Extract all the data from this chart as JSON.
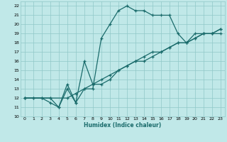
{
  "xlabel": "Humidex (Indice chaleur)",
  "xlim": [
    -0.5,
    23.5
  ],
  "ylim": [
    10,
    22.5
  ],
  "yticks": [
    10,
    11,
    12,
    13,
    14,
    15,
    16,
    17,
    18,
    19,
    20,
    21,
    22
  ],
  "xticks": [
    0,
    1,
    2,
    3,
    4,
    5,
    6,
    7,
    8,
    9,
    10,
    11,
    12,
    13,
    14,
    15,
    16,
    17,
    18,
    19,
    20,
    21,
    22,
    23
  ],
  "bg_color": "#c0e8e8",
  "line_color": "#1a6b6b",
  "grid_color": "#90c8c8",
  "line1_x": [
    0,
    1,
    2,
    3,
    4,
    5,
    6,
    7,
    8,
    9,
    10,
    11,
    12,
    13,
    14,
    15,
    16,
    17,
    18,
    19,
    20,
    21,
    22,
    23
  ],
  "line1_y": [
    12,
    12,
    12,
    12,
    11,
    13,
    11.5,
    13,
    13,
    18.5,
    20,
    21.5,
    22,
    21.5,
    21.5,
    21,
    21,
    21,
    19,
    18,
    19,
    19,
    19,
    19
  ],
  "line2_x": [
    0,
    1,
    2,
    3,
    4,
    5,
    6,
    7,
    8,
    9,
    10,
    11,
    12,
    13,
    14,
    15,
    16,
    17,
    18,
    19,
    20,
    21,
    22,
    23
  ],
  "line2_y": [
    12,
    12,
    12,
    11.5,
    11,
    13.5,
    11.5,
    16,
    13.5,
    13.5,
    14,
    15,
    15.5,
    16,
    16,
    16.5,
    17,
    17.5,
    18,
    18,
    18.5,
    19,
    19,
    19.5
  ],
  "line3_x": [
    0,
    3,
    5,
    6,
    7,
    8,
    9,
    10,
    11,
    12,
    13,
    14,
    15,
    16,
    17,
    18,
    19,
    20,
    21,
    22,
    23
  ],
  "line3_y": [
    12,
    12,
    12,
    12.5,
    13,
    13.5,
    14,
    14.5,
    15,
    15.5,
    16,
    16.5,
    17,
    17,
    17.5,
    18,
    18,
    18.5,
    19,
    19,
    19.5
  ]
}
